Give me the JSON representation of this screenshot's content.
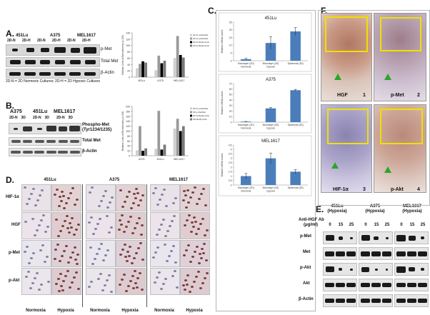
{
  "panelA": {
    "label": "A.",
    "cell_lines": [
      "451Lu",
      "A375",
      "MEL1617"
    ],
    "lanes": [
      "2D-N",
      "2D-H",
      "2D-N",
      "2D-H",
      "2D-N",
      "2D-H"
    ],
    "rows": [
      "p-Met",
      "Total Met",
      "β-Actin"
    ],
    "caption": "2D-N = 2D Normoxic Cultures;   2D-H = 2D Hypoxic Cultures"
  },
  "panelB": {
    "label": "B.",
    "cell_lines": [
      "A375",
      "451Lu",
      "MEL1617"
    ],
    "lanes": [
      "2D-N",
      "3D",
      "2D-N",
      "3D",
      "2D-N",
      "3D"
    ],
    "rows": [
      "Phospho-Met",
      "(Tyr1234/1235)",
      "Total Met",
      "β-Actin"
    ]
  },
  "panelC": {
    "label": "C.",
    "subcharts": [
      "451Lu",
      "A375",
      "MEL1617"
    ]
  },
  "panelD": {
    "label": "D.",
    "cell_lines": [
      "451Lu",
      "A375",
      "MEL1617"
    ],
    "rows": [
      "HIF-1α",
      "HGF",
      "p-Met",
      "p-Akt"
    ],
    "conditions": [
      "Normoxia",
      "Hypoxia"
    ]
  },
  "panelE": {
    "label": "E.",
    "cell_lines": [
      "451Lu",
      "A375",
      "MEL1617"
    ],
    "cell_sub": [
      "(Hypoxia)",
      "(Hypoxia)",
      "(Hypoxia)"
    ],
    "treatment_label": "Anti-HGF Ab",
    "treatment_unit": "(μg/ml)",
    "doses": [
      "0",
      "15",
      "25",
      "0",
      "15",
      "25",
      "0",
      "15",
      "25"
    ],
    "rows": [
      "p-Met",
      "Met",
      "p-Akt",
      "Akt",
      "β-Actin"
    ]
  },
  "panelF": {
    "label": "F.",
    "tiles": [
      {
        "label": "HGF",
        "num": "1"
      },
      {
        "label": "p-Met",
        "num": "2"
      },
      {
        "label": "HIF-1α",
        "num": "3"
      },
      {
        "label": "p-Akt",
        "num": "4"
      }
    ]
  },
  "chart_data": [
    {
      "type": "bar",
      "panel": "A",
      "categories": [
        "451Lu",
        "A375",
        "MEL1617"
      ],
      "ylabel": "Relative Units of Densitometry (x 100)",
      "ylim": [
        0,
        140
      ],
      "yticks": [
        "0",
        "20",
        "40",
        "60",
        "80",
        "100",
        "120",
        "140"
      ],
      "legend": [
        "2D-N p-Met/Met",
        "2D-H p-Met/Met",
        "2D-N Met/β-Actin",
        "2D-H Met/β-Actin"
      ],
      "legend_position": "top-right",
      "series": [
        {
          "name": "2D-N p-Met/Met",
          "values": [
            28,
            22,
            60
          ]
        },
        {
          "name": "2D-H p-Met/Met",
          "values": [
            42,
            68,
            130
          ]
        },
        {
          "name": "2D-N Met/β-Actin",
          "values": [
            50,
            44,
            70
          ]
        },
        {
          "name": "2D-H Met/β-Actin",
          "values": [
            46,
            52,
            62
          ]
        }
      ],
      "colors": [
        "#cfcfcf",
        "#9a9a9a",
        "#000000",
        "#7a7a7a"
      ]
    },
    {
      "type": "bar",
      "panel": "B",
      "categories": [
        "A375",
        "451Lu",
        "MEL1617"
      ],
      "ylabel": "Relative Units of Densitometry (x 100)",
      "ylim": [
        0,
        200
      ],
      "yticks": [
        "0",
        "20",
        "40",
        "60",
        "80",
        "100",
        "120",
        "140",
        "160",
        "180",
        "200"
      ],
      "legend": [
        "2D-N p-Met/Met",
        "3D p-Met/Met",
        "2D-N Met/β-Actin",
        "3D Met/β-Actin"
      ],
      "legend_position": "top-right",
      "series": [
        {
          "name": "2D-N p-Met/Met",
          "values": [
            22,
            28,
            110
          ]
        },
        {
          "name": "3D p-Met/Met",
          "values": [
            120,
            182,
            150
          ]
        },
        {
          "name": "2D-N Met/β-Actin",
          "values": [
            20,
            25,
            100
          ]
        },
        {
          "name": "3D Met/β-Actin",
          "values": [
            30,
            45,
            120
          ]
        }
      ],
      "colors": [
        "#cfcfcf",
        "#9a9a9a",
        "#000000",
        "#7a7a7a"
      ]
    },
    {
      "type": "bar",
      "panel": "C1",
      "title": "451Lu",
      "categories": [
        "Monolayer (2D) Normoxia",
        "Monolayer (2D) hypoxia",
        "Spheroids (3D)"
      ],
      "values": [
        1,
        11.5,
        19
      ],
      "errors": [
        0.5,
        4,
        2.5
      ],
      "ylabel": "Relative mRNA Levels",
      "ylim": [
        0,
        25
      ],
      "yticks": [
        "0",
        "5",
        "10",
        "15",
        "20",
        "25"
      ],
      "color": "#4a7ebb"
    },
    {
      "type": "bar",
      "panel": "C2",
      "title": "A375",
      "categories": [
        "Monolayer (2D) Normoxia",
        "Monolayer (2D) hypoxia",
        "Spheroids (3D)"
      ],
      "values": [
        1,
        25,
        58
      ],
      "errors": [
        0.3,
        1.5,
        1.5
      ],
      "ylabel": "Relative mRNA Levels",
      "ylim": [
        0,
        70
      ],
      "yticks": [
        "0",
        "10",
        "20",
        "30",
        "40",
        "50",
        "60",
        "70"
      ],
      "color": "#4a7ebb"
    },
    {
      "type": "bar",
      "panel": "C3",
      "title": "MEL1617",
      "categories": [
        "Monolayer (2D) Normoxia",
        "Monolayer (2D) hypoxia",
        "Spheroids (3D)"
      ],
      "values": [
        1,
        3,
        1.5
      ],
      "errors": [
        0.3,
        0.6,
        0.25
      ],
      "ylabel": "Relative mRNA Levels",
      "ylim": [
        0,
        4.5
      ],
      "yticks": [
        "0",
        "0.5",
        "1",
        "1.5",
        "2",
        "2.5",
        "3",
        "3.5",
        "4",
        "4.5"
      ],
      "color": "#4a7ebb"
    }
  ]
}
